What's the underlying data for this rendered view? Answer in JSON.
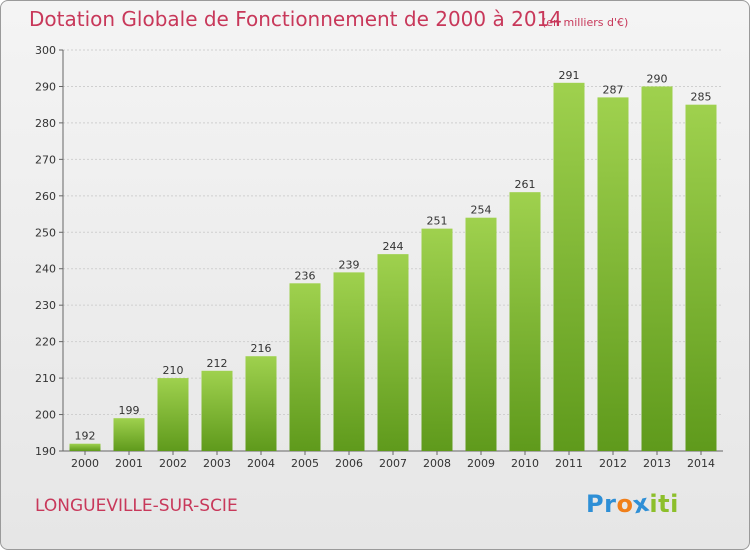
{
  "title": "Dotation Globale de Fonctionnement de 2000 à 2014",
  "unit_note": "(en milliers d'€)",
  "commune": "LONGUEVILLE-SUR-SCIE",
  "logo": {
    "text": "Proxiti",
    "letters": [
      {
        "ch": "P",
        "color": "#2e8fd6"
      },
      {
        "ch": "r",
        "color": "#2e8fd6"
      },
      {
        "ch": "o",
        "color": "#f07f1a"
      },
      {
        "ch": "x",
        "color": "#2e8fd6"
      },
      {
        "ch": "i",
        "color": "#8dbf2b"
      },
      {
        "ch": "t",
        "color": "#8dbf2b"
      },
      {
        "ch": "i",
        "color": "#8dbf2b"
      }
    ]
  },
  "colors": {
    "bar_light": "#9fd14e",
    "bar_dark": "#5f9a1c",
    "title": "#c8385a",
    "grid": "#cfcfcf",
    "axis": "#666666"
  },
  "chart_data": {
    "type": "bar",
    "categories": [
      "2000",
      "2001",
      "2002",
      "2003",
      "2004",
      "2005",
      "2006",
      "2007",
      "2008",
      "2009",
      "2010",
      "2011",
      "2012",
      "2013",
      "2014"
    ],
    "values": [
      192,
      199,
      210,
      212,
      216,
      236,
      239,
      244,
      251,
      254,
      261,
      291,
      287,
      290,
      285
    ],
    "ylim": [
      190,
      300
    ],
    "yticks": [
      190,
      200,
      210,
      220,
      230,
      240,
      250,
      260,
      270,
      280,
      290,
      300
    ],
    "grid": true,
    "legend": "none"
  }
}
